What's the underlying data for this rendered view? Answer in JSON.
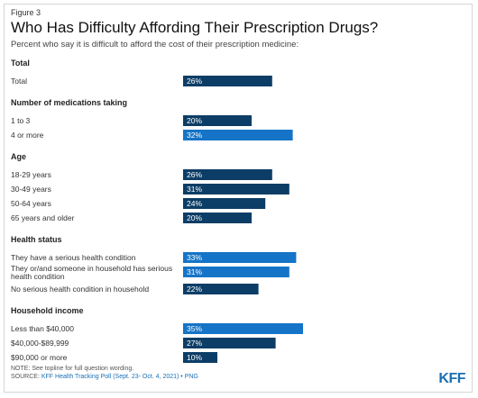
{
  "figure_label": "Figure 3",
  "chart_data": {
    "type": "bar",
    "orientation": "horizontal",
    "title": "Who Has Difficulty Affording Their Prescription Drugs?",
    "subtitle": "Percent who say it is difficult to afford the cost of their prescription medicine:",
    "value_suffix": "%",
    "xlim": [
      0,
      100
    ],
    "colors": {
      "default": "#0c3d66",
      "highlight": "#1574c7"
    },
    "groups": [
      {
        "title": "Total",
        "rows": [
          {
            "label": "Total",
            "value": 26,
            "highlight": false
          }
        ]
      },
      {
        "title": "Number of medications taking",
        "rows": [
          {
            "label": "1 to 3",
            "value": 20,
            "highlight": false
          },
          {
            "label": "4 or more",
            "value": 32,
            "highlight": true
          }
        ]
      },
      {
        "title": "Age",
        "rows": [
          {
            "label": "18-29 years",
            "value": 26,
            "highlight": false
          },
          {
            "label": "30-49 years",
            "value": 31,
            "highlight": false
          },
          {
            "label": "50-64 years",
            "value": 24,
            "highlight": false
          },
          {
            "label": "65 years and older",
            "value": 20,
            "highlight": false
          }
        ]
      },
      {
        "title": "Health status",
        "rows": [
          {
            "label": "They have a serious health condition",
            "value": 33,
            "highlight": true
          },
          {
            "label": "They or/and someone in household has serious",
            "label2": "health condition",
            "value": 31,
            "highlight": true
          },
          {
            "label": "No serious health condition in household",
            "value": 22,
            "highlight": false
          }
        ]
      },
      {
        "title": "Household income",
        "rows": [
          {
            "label": "Less than $40,000",
            "value": 35,
            "highlight": true
          },
          {
            "label": "$40,000-$89,999",
            "value": 27,
            "highlight": false
          },
          {
            "label": "$90,000 or more",
            "value": 10,
            "highlight": false
          }
        ]
      }
    ]
  },
  "footer": {
    "note": "NOTE: See topline for full question wording.",
    "source_prefix": "SOURCE: ",
    "source_text": "KFF Health Tracking Poll (Sept. 23- Oct. 4, 2021) • PNG"
  },
  "logo_text": "KFF"
}
